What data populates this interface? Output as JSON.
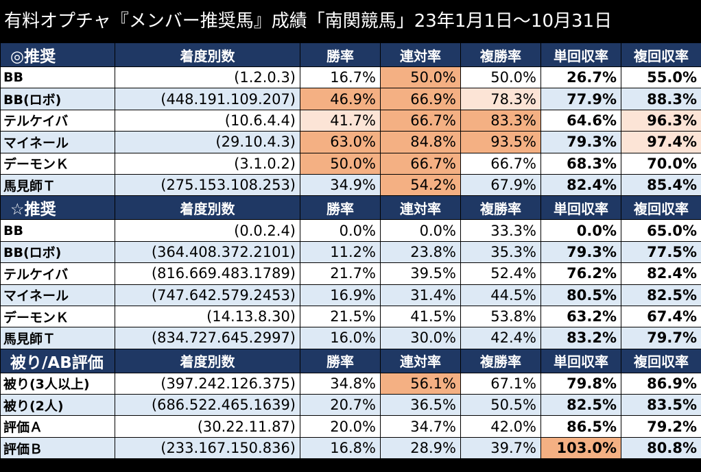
{
  "title": "有料オプチャ『メンバー推奨馬』成績「南関競馬」23年1月1日～10月31日",
  "columns": [
    "着度別数",
    "勝率",
    "連対率",
    "複勝率",
    "単回収率",
    "複回収率"
  ],
  "colors": {
    "header_bg": "#1f3864",
    "stripe": "#dde9f5",
    "highlight_strong": "#f4b083",
    "highlight_light": "#fce4d6"
  },
  "sections": [
    {
      "label": "◎推奨",
      "rows": [
        {
          "name": "BB",
          "record": "(1.2.0.3)",
          "win": "16.7%",
          "quinella": "50.0%",
          "place": "50.0%",
          "win_return": "26.7%",
          "place_return": "55.0%",
          "hl": [
            "",
            "o",
            "",
            "",
            ""
          ]
        },
        {
          "name": "BB(ロボ)",
          "record": "(448.191.109.207)",
          "win": "46.9%",
          "quinella": "66.9%",
          "place": "78.3%",
          "win_return": "77.9%",
          "place_return": "88.3%",
          "hl": [
            "o",
            "o",
            "p",
            "",
            ""
          ]
        },
        {
          "name": "テルケイバ",
          "record": "(10.6.4.4)",
          "win": "41.7%",
          "quinella": "66.7%",
          "place": "83.3%",
          "win_return": "64.6%",
          "place_return": "96.3%",
          "hl": [
            "p",
            "o",
            "o",
            "",
            "p"
          ]
        },
        {
          "name": "マイネール",
          "record": "(29.10.4.3)",
          "win": "63.0%",
          "quinella": "84.8%",
          "place": "93.5%",
          "win_return": "79.3%",
          "place_return": "97.4%",
          "hl": [
            "o",
            "o",
            "o",
            "",
            "p"
          ]
        },
        {
          "name": "デーモンＫ",
          "record": "(3.1.0.2)",
          "win": "50.0%",
          "quinella": "66.7%",
          "place": "66.7%",
          "win_return": "68.3%",
          "place_return": "70.0%",
          "hl": [
            "o",
            "o",
            "",
            "",
            ""
          ]
        },
        {
          "name": "馬見師Ｔ",
          "record": "(275.153.108.253)",
          "win": "34.9%",
          "quinella": "54.2%",
          "place": "67.9%",
          "win_return": "82.4%",
          "place_return": "85.4%",
          "hl": [
            "",
            "o",
            "",
            "",
            ""
          ]
        }
      ]
    },
    {
      "label": "☆推奨",
      "rows": [
        {
          "name": "BB",
          "record": "(0.0.2.4)",
          "win": "0.0%",
          "quinella": "0.0%",
          "place": "33.3%",
          "win_return": "0.0%",
          "place_return": "65.0%",
          "hl": [
            "",
            "",
            "",
            "",
            ""
          ]
        },
        {
          "name": "BB(ロボ)",
          "record": "(364.408.372.2101)",
          "win": "11.2%",
          "quinella": "23.8%",
          "place": "35.3%",
          "win_return": "79.3%",
          "place_return": "77.5%",
          "hl": [
            "",
            "",
            "",
            "",
            ""
          ]
        },
        {
          "name": "テルケイバ",
          "record": "(816.669.483.1789)",
          "win": "21.7%",
          "quinella": "39.5%",
          "place": "52.4%",
          "win_return": "76.2%",
          "place_return": "82.4%",
          "hl": [
            "",
            "",
            "",
            "",
            ""
          ]
        },
        {
          "name": "マイネール",
          "record": "(747.642.579.2453)",
          "win": "16.9%",
          "quinella": "31.4%",
          "place": "44.5%",
          "win_return": "80.5%",
          "place_return": "82.5%",
          "hl": [
            "",
            "",
            "",
            "",
            ""
          ]
        },
        {
          "name": "デーモンＫ",
          "record": "(14.13.8.30)",
          "win": "21.5%",
          "quinella": "41.5%",
          "place": "53.8%",
          "win_return": "63.2%",
          "place_return": "67.4%",
          "hl": [
            "",
            "",
            "",
            "",
            ""
          ]
        },
        {
          "name": "馬見師Ｔ",
          "record": "(834.727.645.2997)",
          "win": "16.0%",
          "quinella": "30.0%",
          "place": "42.4%",
          "win_return": "83.2%",
          "place_return": "79.7%",
          "hl": [
            "",
            "",
            "",
            "",
            ""
          ]
        }
      ]
    },
    {
      "label": "被り/AB評価",
      "rows": [
        {
          "name": "被り(3人以上)",
          "record": "(397.242.126.375)",
          "win": "34.8%",
          "quinella": "56.1%",
          "place": "67.1%",
          "win_return": "79.8%",
          "place_return": "86.9%",
          "hl": [
            "",
            "o",
            "",
            "",
            ""
          ]
        },
        {
          "name": "被り(2人)",
          "record": "(686.522.465.1639)",
          "win": "20.7%",
          "quinella": "36.5%",
          "place": "50.5%",
          "win_return": "82.5%",
          "place_return": "83.5%",
          "hl": [
            "",
            "",
            "",
            "",
            ""
          ]
        },
        {
          "name": "評価Ａ",
          "record": "(30.22.11.87)",
          "win": "20.0%",
          "quinella": "34.7%",
          "place": "42.0%",
          "win_return": "86.5%",
          "place_return": "79.2%",
          "hl": [
            "",
            "",
            "",
            "",
            ""
          ]
        },
        {
          "name": "評価Ｂ",
          "record": "(233.167.150.836)",
          "win": "16.8%",
          "quinella": "28.9%",
          "place": "39.7%",
          "win_return": "103.0%",
          "place_return": "80.8%",
          "hl": [
            "",
            "",
            "",
            "o",
            ""
          ]
        }
      ]
    }
  ]
}
